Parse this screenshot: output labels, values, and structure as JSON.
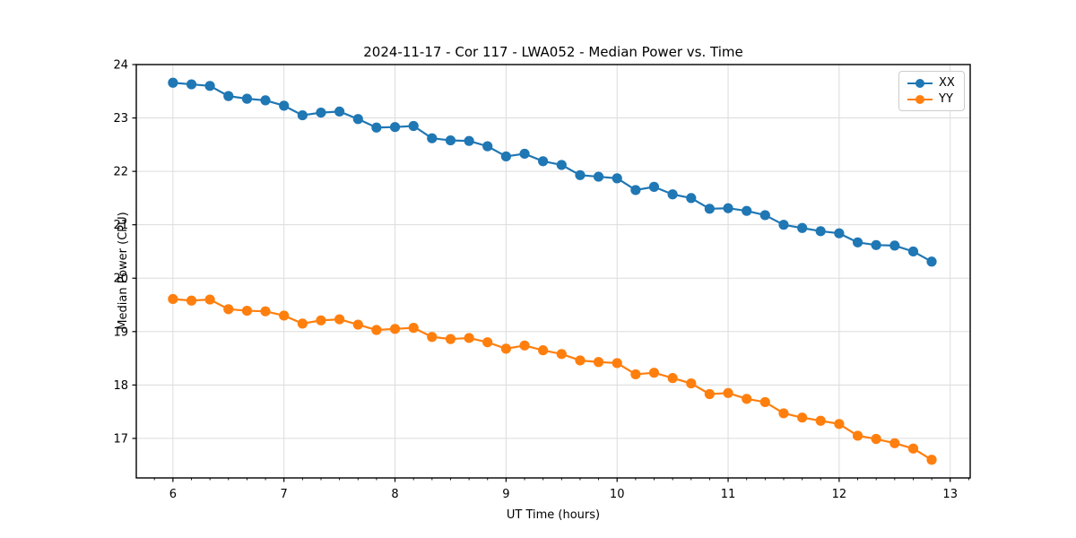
{
  "figure": {
    "background": "#ffffff",
    "grid_color": "#dcdcdc",
    "spine_color": "#000000",
    "text_color": "#000000"
  },
  "chart_data": {
    "type": "line",
    "title": "2024-11-17 - Cor 117 - LWA052 - Median Power vs. Time",
    "xlabel": "UT Time (hours)",
    "ylabel": "Median Power (CPU)",
    "xlim": [
      5.67,
      13.18
    ],
    "ylim": [
      16.26,
      24.0
    ],
    "x_ticks": [
      6,
      7,
      8,
      9,
      10,
      11,
      12,
      13
    ],
    "y_ticks": [
      17,
      18,
      19,
      20,
      21,
      22,
      23,
      24
    ],
    "x_minor_tick_step": 0.16667,
    "grid": true,
    "legend_position": "upper right",
    "marker": "circle",
    "x": [
      6.0,
      6.167,
      6.333,
      6.5,
      6.667,
      6.833,
      7.0,
      7.167,
      7.333,
      7.5,
      7.667,
      7.833,
      8.0,
      8.167,
      8.333,
      8.5,
      8.667,
      8.833,
      9.0,
      9.167,
      9.333,
      9.5,
      9.667,
      9.833,
      10.0,
      10.167,
      10.333,
      10.5,
      10.667,
      10.833,
      11.0,
      11.167,
      11.333,
      11.5,
      11.667,
      11.833,
      12.0,
      12.167,
      12.333,
      12.5,
      12.667,
      12.833
    ],
    "series": [
      {
        "name": "XX",
        "color": "#1f77b4",
        "values": [
          23.66,
          23.63,
          23.6,
          23.41,
          23.36,
          23.33,
          23.23,
          23.05,
          23.1,
          23.12,
          22.98,
          22.82,
          22.83,
          22.85,
          22.62,
          22.58,
          22.57,
          22.47,
          22.28,
          22.33,
          22.19,
          22.12,
          21.93,
          21.9,
          21.87,
          21.65,
          21.71,
          21.57,
          21.5,
          21.3,
          21.31,
          21.26,
          21.18,
          21.0,
          20.94,
          20.88,
          20.84,
          20.67,
          20.62,
          20.61,
          20.5,
          20.31
        ]
      },
      {
        "name": "YY",
        "color": "#ff7f0e",
        "values": [
          19.61,
          19.58,
          19.6,
          19.42,
          19.39,
          19.38,
          19.3,
          19.15,
          19.21,
          19.23,
          19.13,
          19.03,
          19.05,
          19.07,
          18.9,
          18.86,
          18.88,
          18.8,
          18.68,
          18.74,
          18.65,
          18.58,
          18.46,
          18.43,
          18.41,
          18.2,
          18.23,
          18.13,
          18.03,
          17.83,
          17.85,
          17.74,
          17.68,
          17.47,
          17.39,
          17.33,
          17.27,
          17.05,
          16.99,
          16.91,
          16.81,
          16.6
        ]
      }
    ]
  }
}
